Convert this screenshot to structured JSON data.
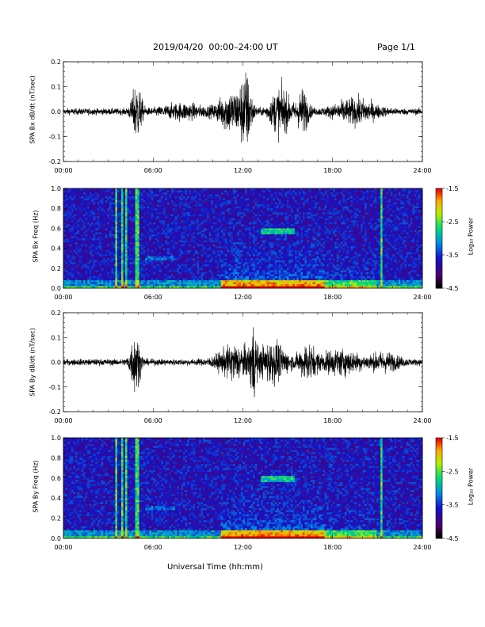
{
  "header": {
    "title": "2019/04/20  00:00–24:00 UT",
    "page": "Page 1/1"
  },
  "xaxis": {
    "ticks": [
      "00:00",
      "06:00",
      "12:00",
      "18:00",
      "24:00"
    ],
    "title": "Universal Time (hh:mm)"
  },
  "colorbar": {
    "label": "Log₁₀ Power",
    "ticks": [
      "-1.5",
      "-2.5",
      "-3.5",
      "-4.5"
    ],
    "range": [
      -4.5,
      -1.5
    ]
  },
  "chart_data": [
    {
      "type": "line",
      "ylabel": "SPA Bx dB/dt (nT/sec)",
      "ylim": [
        -0.2,
        0.2
      ],
      "yticks": [
        "0.2",
        "0.1",
        "0.0",
        "-0.1",
        "-0.2"
      ],
      "xlim_hours": [
        0,
        24
      ],
      "background_amplitude": 0.02,
      "bursts": [
        {
          "t": 4.9,
          "w": 0.35,
          "a": 0.17
        },
        {
          "t": 11.2,
          "w": 0.9,
          "a": 0.12
        },
        {
          "t": 12.2,
          "w": 0.4,
          "a": 0.21
        },
        {
          "t": 14.5,
          "w": 0.7,
          "a": 0.14
        },
        {
          "t": 16.0,
          "w": 0.4,
          "a": 0.13
        },
        {
          "t": 19.5,
          "w": 1.5,
          "a": 0.07
        },
        {
          "t": 8.0,
          "w": 1.5,
          "a": 0.04
        }
      ]
    },
    {
      "type": "heatmap",
      "ylabel": "SPA Bx Freq (Hz)",
      "ylim": [
        0.0,
        1.0
      ],
      "yticks": [
        "1.0",
        "0.8",
        "0.6",
        "0.4",
        "0.2",
        "0.0"
      ],
      "xlim_hours": [
        0,
        24
      ],
      "zlim": [
        -4.5,
        -1.5
      ],
      "hot_columns": [
        3.5,
        3.9,
        4.2,
        4.9,
        5.0,
        21.3
      ],
      "tone": {
        "start": 13.2,
        "end": 15.5,
        "freq": 0.58
      }
    },
    {
      "type": "line",
      "ylabel": "SPA By dB/dt (nT/sec)",
      "ylim": [
        -0.2,
        0.2
      ],
      "yticks": [
        "0.2",
        "0.1",
        "0.0",
        "-0.1",
        "-0.2"
      ],
      "xlim_hours": [
        0,
        24
      ],
      "background_amplitude": 0.02,
      "bursts": [
        {
          "t": 4.8,
          "w": 0.35,
          "a": 0.18
        },
        {
          "t": 11.5,
          "w": 1.2,
          "a": 0.1
        },
        {
          "t": 12.7,
          "w": 0.2,
          "a": 0.2
        },
        {
          "t": 14.0,
          "w": 1.0,
          "a": 0.12
        },
        {
          "t": 16.3,
          "w": 0.6,
          "a": 0.1
        },
        {
          "t": 18.5,
          "w": 1.5,
          "a": 0.07
        },
        {
          "t": 21.5,
          "w": 1.0,
          "a": 0.05
        }
      ]
    },
    {
      "type": "heatmap",
      "ylabel": "SPA By Freq (Hz)",
      "ylim": [
        0.0,
        1.0
      ],
      "yticks": [
        "1.0",
        "0.8",
        "0.6",
        "0.4",
        "0.2",
        "0.0"
      ],
      "xlim_hours": [
        0,
        24
      ],
      "zlim": [
        -4.5,
        -1.5
      ],
      "hot_columns": [
        3.5,
        3.9,
        4.2,
        4.9,
        5.0,
        21.3
      ],
      "tone": {
        "start": 13.2,
        "end": 15.5,
        "freq": 0.6
      }
    }
  ]
}
